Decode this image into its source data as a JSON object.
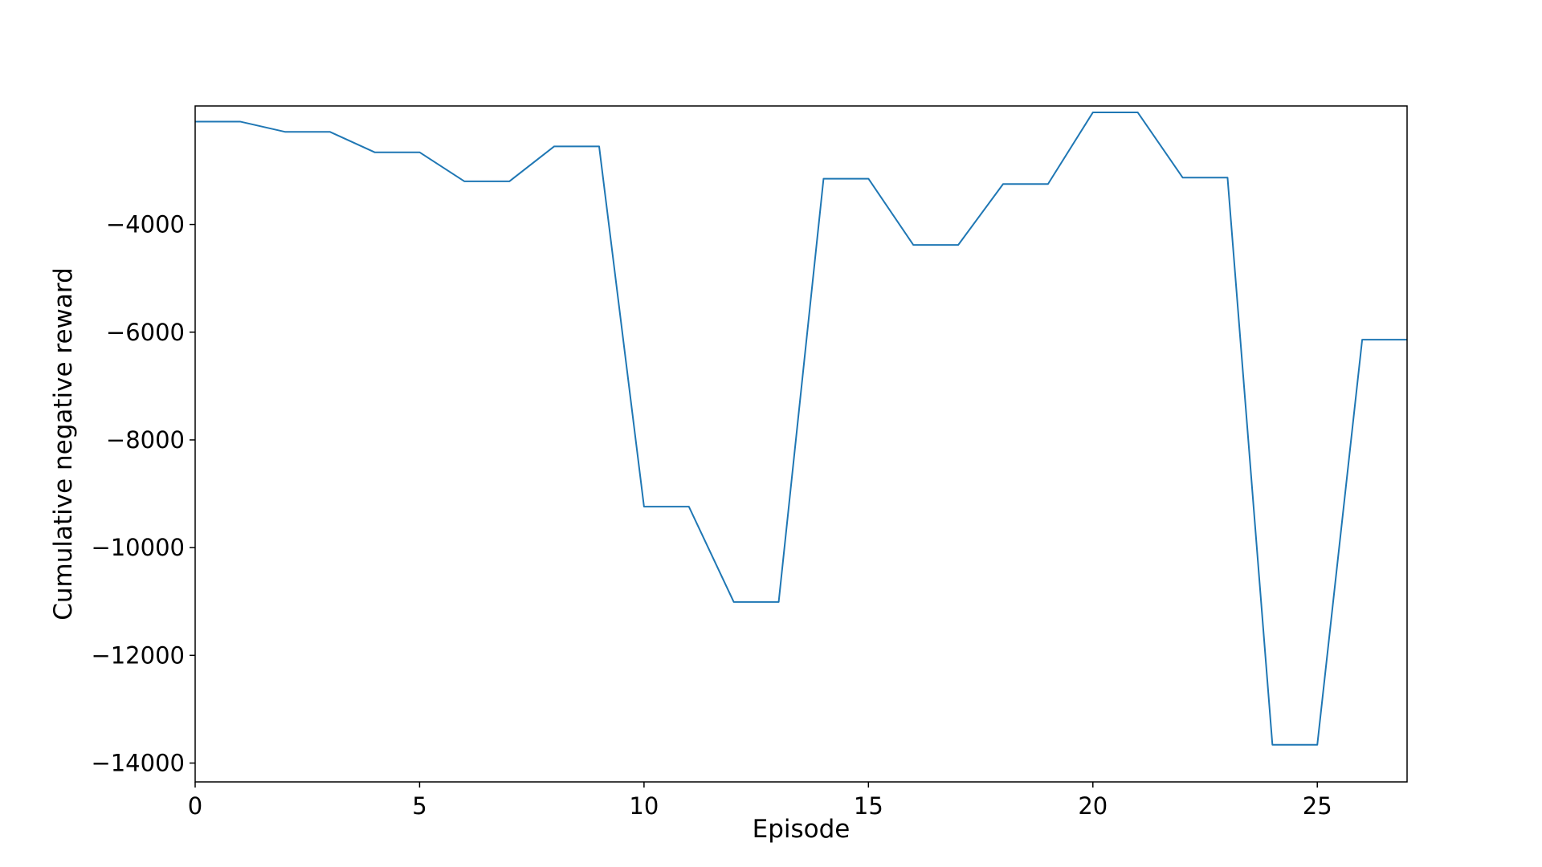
{
  "chart_data": {
    "type": "line",
    "title": "",
    "xlabel": "Episode",
    "ylabel": "Cumulative negative reward",
    "xlim": [
      0,
      27
    ],
    "ylim": [
      -14350,
      -1800
    ],
    "x_ticks": [
      0,
      5,
      10,
      15,
      20,
      25
    ],
    "y_ticks": [
      -4000,
      -6000,
      -8000,
      -10000,
      -12000,
      -14000
    ],
    "x_tick_labels": [
      "0",
      "5",
      "10",
      "15",
      "20",
      "25"
    ],
    "y_tick_labels": [
      "−4000",
      "−6000",
      "−8000",
      "−10000",
      "−12000",
      "−14000"
    ],
    "grid": false,
    "legend": "none",
    "line_color": "#1f77b4",
    "series": [
      {
        "x": [
          0,
          1,
          2,
          3,
          4,
          5,
          6,
          7,
          8,
          9,
          10,
          11,
          12,
          13,
          14,
          15,
          16,
          17,
          18,
          19,
          20,
          21,
          22,
          23,
          24,
          25,
          26,
          27
        ],
        "values": [
          -2090,
          -2090,
          -2280,
          -2280,
          -2660,
          -2660,
          -3200,
          -3200,
          -2550,
          -2550,
          -9240,
          -9240,
          -11010,
          -11010,
          -3150,
          -3150,
          -4380,
          -4380,
          -3250,
          -3250,
          -1920,
          -1920,
          -3130,
          -3130,
          -13660,
          -13660,
          -6140,
          -6140
        ]
      }
    ]
  }
}
